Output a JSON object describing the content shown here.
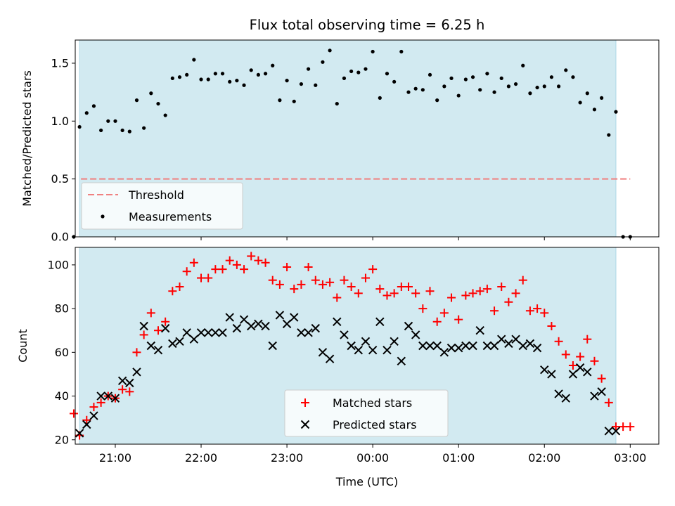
{
  "title": "Flux total observing time = 6.25 h",
  "colors": {
    "observing_window": "#add8e6",
    "threshold": "#f08080",
    "measurements": "#000000",
    "matched": "#ff0000",
    "predicted": "#000000"
  },
  "chart_data": [
    {
      "type": "scatter",
      "ylabel": "Matched/Predicted stars",
      "ylim": [
        0.0,
        1.7
      ],
      "xlim": [
        "20:32",
        "03:20"
      ],
      "yticks": [
        "0.0",
        "0.5",
        "1.0",
        "1.5"
      ],
      "shaded_interval": [
        "20:35",
        "02:50"
      ],
      "threshold": {
        "name": "Threshold",
        "value": 0.5,
        "x_range": [
          "20:36",
          "03:00"
        ]
      },
      "legend": {
        "position": "lower-left",
        "entries": [
          "Threshold",
          "Measurements"
        ]
      },
      "series": [
        {
          "name": "Measurements",
          "marker": "dot",
          "x": [
            "20:31",
            "20:35",
            "20:40",
            "20:45",
            "20:50",
            "20:55",
            "21:00",
            "21:05",
            "21:10",
            "21:15",
            "21:20",
            "21:25",
            "21:30",
            "21:35",
            "21:40",
            "21:45",
            "21:50",
            "21:55",
            "22:00",
            "22:05",
            "22:10",
            "22:15",
            "22:20",
            "22:25",
            "22:30",
            "22:35",
            "22:40",
            "22:45",
            "22:50",
            "22:55",
            "23:00",
            "23:05",
            "23:10",
            "23:15",
            "23:20",
            "23:25",
            "23:30",
            "23:35",
            "23:40",
            "23:45",
            "23:50",
            "23:55",
            "00:00",
            "00:05",
            "00:10",
            "00:15",
            "00:20",
            "00:25",
            "00:30",
            "00:35",
            "00:40",
            "00:45",
            "00:50",
            "00:55",
            "01:00",
            "01:05",
            "01:10",
            "01:15",
            "01:20",
            "01:25",
            "01:30",
            "01:35",
            "01:40",
            "01:45",
            "01:50",
            "01:55",
            "02:00",
            "02:05",
            "02:10",
            "02:15",
            "02:20",
            "02:25",
            "02:30",
            "02:35",
            "02:40",
            "02:45",
            "02:50",
            "02:55",
            "03:00"
          ],
          "y": [
            0.0,
            0.95,
            1.07,
            1.13,
            0.92,
            1.0,
            1.0,
            0.92,
            0.91,
            1.18,
            0.94,
            1.24,
            1.15,
            1.05,
            1.37,
            1.38,
            1.4,
            1.53,
            1.36,
            1.36,
            1.41,
            1.41,
            1.34,
            1.35,
            1.31,
            1.44,
            1.4,
            1.41,
            1.48,
            1.18,
            1.35,
            1.17,
            1.32,
            1.45,
            1.31,
            1.51,
            1.61,
            1.15,
            1.37,
            1.43,
            1.42,
            1.45,
            1.6,
            1.2,
            1.41,
            1.34,
            1.6,
            1.25,
            1.28,
            1.27,
            1.4,
            1.18,
            1.3,
            1.37,
            1.22,
            1.36,
            1.38,
            1.27,
            1.41,
            1.25,
            1.37,
            1.3,
            1.32,
            1.48,
            1.24,
            1.29,
            1.3,
            1.38,
            1.3,
            1.44,
            1.38,
            1.16,
            1.24,
            1.1,
            1.2,
            0.88,
            1.08,
            0.0,
            0.0
          ]
        }
      ]
    },
    {
      "type": "scatter",
      "xlabel": "Time (UTC)",
      "ylabel": "Count",
      "ylim": [
        18,
        108
      ],
      "xlim": [
        "20:32",
        "03:20"
      ],
      "xticks": [
        "21:00",
        "22:00",
        "23:00",
        "00:00",
        "01:00",
        "02:00",
        "03:00"
      ],
      "yticks": [
        "20",
        "40",
        "60",
        "80",
        "100"
      ],
      "shaded_interval": [
        "20:35",
        "02:50"
      ],
      "legend": {
        "position": "lower-center",
        "entries": [
          "Matched stars",
          "Predicted stars"
        ]
      },
      "series": [
        {
          "name": "Matched stars",
          "marker": "plus",
          "x": [
            "20:31",
            "20:35",
            "20:40",
            "20:45",
            "20:50",
            "20:55",
            "21:00",
            "21:05",
            "21:10",
            "21:15",
            "21:20",
            "21:25",
            "21:30",
            "21:35",
            "21:40",
            "21:45",
            "21:50",
            "21:55",
            "22:00",
            "22:05",
            "22:10",
            "22:15",
            "22:20",
            "22:25",
            "22:30",
            "22:35",
            "22:40",
            "22:45",
            "22:50",
            "22:55",
            "23:00",
            "23:05",
            "23:10",
            "23:15",
            "23:20",
            "23:25",
            "23:30",
            "23:35",
            "23:40",
            "23:45",
            "23:50",
            "23:55",
            "00:00",
            "00:05",
            "00:10",
            "00:15",
            "00:20",
            "00:25",
            "00:30",
            "00:35",
            "00:40",
            "00:45",
            "00:50",
            "00:55",
            "01:00",
            "01:05",
            "01:10",
            "01:15",
            "01:20",
            "01:25",
            "01:30",
            "01:35",
            "01:40",
            "01:45",
            "01:50",
            "01:55",
            "02:00",
            "02:05",
            "02:10",
            "02:15",
            "02:20",
            "02:25",
            "02:30",
            "02:35",
            "02:40",
            "02:45",
            "02:50",
            "02:55",
            "03:00"
          ],
          "y": [
            32,
            22,
            29,
            35,
            37,
            40,
            39,
            43,
            42,
            60,
            68,
            78,
            70,
            74,
            88,
            90,
            97,
            101,
            94,
            94,
            98,
            98,
            102,
            100,
            98,
            104,
            102,
            101,
            93,
            91,
            99,
            89,
            91,
            99,
            93,
            91,
            92,
            85,
            93,
            90,
            87,
            94,
            98,
            89,
            86,
            87,
            90,
            90,
            87,
            80,
            88,
            74,
            78,
            85,
            75,
            86,
            87,
            88,
            89,
            79,
            90,
            83,
            87,
            93,
            79,
            80,
            78,
            72,
            65,
            59,
            54,
            58,
            66,
            56,
            48,
            37,
            26,
            26,
            26
          ]
        },
        {
          "name": "Predicted stars",
          "marker": "x",
          "x": [
            "20:35",
            "20:40",
            "20:45",
            "20:50",
            "20:55",
            "21:00",
            "21:05",
            "21:10",
            "21:15",
            "21:20",
            "21:25",
            "21:30",
            "21:35",
            "21:40",
            "21:45",
            "21:50",
            "21:55",
            "22:00",
            "22:05",
            "22:10",
            "22:15",
            "22:20",
            "22:25",
            "22:30",
            "22:35",
            "22:40",
            "22:45",
            "22:50",
            "22:55",
            "23:00",
            "23:05",
            "23:10",
            "23:15",
            "23:20",
            "23:25",
            "23:30",
            "23:35",
            "23:40",
            "23:45",
            "23:50",
            "23:55",
            "00:00",
            "00:05",
            "00:10",
            "00:15",
            "00:20",
            "00:25",
            "00:30",
            "00:35",
            "00:40",
            "00:45",
            "00:50",
            "00:55",
            "01:00",
            "01:05",
            "01:10",
            "01:15",
            "01:20",
            "01:25",
            "01:30",
            "01:35",
            "01:40",
            "01:45",
            "01:50",
            "01:55",
            "02:00",
            "02:05",
            "02:10",
            "02:15",
            "02:20",
            "02:25",
            "02:30",
            "02:35",
            "02:40",
            "02:45",
            "02:50"
          ],
          "y": [
            23,
            27,
            31,
            40,
            40,
            39,
            47,
            46,
            51,
            72,
            63,
            61,
            71,
            64,
            65,
            69,
            66,
            69,
            69,
            69,
            69,
            76,
            71,
            75,
            72,
            73,
            72,
            63,
            77,
            73,
            76,
            69,
            69,
            71,
            60,
            57,
            74,
            68,
            63,
            61,
            65,
            61,
            74,
            61,
            65,
            56,
            72,
            68,
            63,
            63,
            63,
            60,
            62,
            62,
            63,
            63,
            70,
            63,
            63,
            66,
            64,
            66,
            63,
            64,
            62,
            52,
            50,
            41,
            39,
            50,
            53,
            51,
            40,
            42,
            24,
            24
          ]
        }
      ]
    }
  ]
}
